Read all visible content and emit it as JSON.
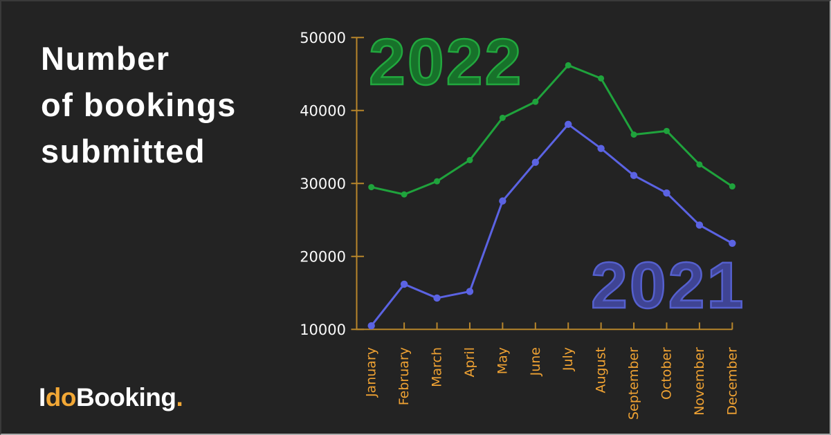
{
  "header": {
    "title": "Number\nof bookings\nsubmitted"
  },
  "logo": {
    "part_i": "I",
    "part_do": "do",
    "part_booking": "Booking",
    "part_dot": "."
  },
  "colors": {
    "background": "#232323",
    "title_text": "#FFFFFF",
    "axis": "#B8862B",
    "month_label": "#EFA233",
    "value_label": "#FAFAFA",
    "series_2022_line": "#1FA33C",
    "series_2021_line": "#5B63E3",
    "year_2022_fill": "#17722A",
    "year_2022_stroke": "#22A83E",
    "year_2021_fill": "#3F4494",
    "year_2021_stroke": "#5560CE",
    "logo_accent": "#F2A836",
    "logo_text": "#FFFFFF",
    "frame_top_left": "#3A3A3A",
    "frame_bottom_right": "#ABABAB"
  },
  "chart_data": {
    "type": "line",
    "title": "Number of bookings submitted",
    "categories": [
      "January",
      "February",
      "March",
      "April",
      "May",
      "June",
      "July",
      "August",
      "September",
      "October",
      "November",
      "December"
    ],
    "series": [
      {
        "name": "2022",
        "values": [
          29500,
          28500,
          30300,
          33200,
          39000,
          41200,
          46200,
          44400,
          36700,
          37200,
          32600,
          29600
        ]
      },
      {
        "name": "2021",
        "values": [
          10500,
          16200,
          14300,
          15200,
          27600,
          32900,
          38100,
          34800,
          31100,
          28700,
          24300,
          21800
        ]
      }
    ],
    "yticks": [
      10000,
      20000,
      30000,
      40000,
      50000
    ],
    "ylim": [
      10000,
      50000
    ],
    "grid": false,
    "legend_style": "large-year-labels-on-plot"
  }
}
